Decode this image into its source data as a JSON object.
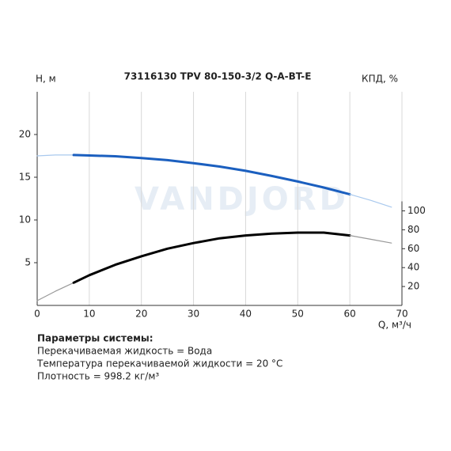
{
  "chart_data": {
    "type": "line",
    "title": "73116130 TPV 80-150-3/2 Q-A-BT-E",
    "watermark": "VANDJORD",
    "ylabel": "H, м",
    "y2label": "КПД, %",
    "xlabel": "Q, м³/ч",
    "xlim": [
      0,
      70
    ],
    "xticks": [
      0,
      10,
      20,
      30,
      40,
      50,
      60,
      70
    ],
    "ylim": [
      0,
      25
    ],
    "yticks": [
      5,
      10,
      15,
      20
    ],
    "y2lim": [
      0,
      226
    ],
    "y2ticks": [
      20,
      40,
      60,
      80,
      100
    ],
    "grid": "x",
    "series": [
      {
        "color": "#a9c9ee",
        "axis": "y",
        "x": [
          0,
          3.5,
          7
        ],
        "values": [
          17.5,
          17.6,
          17.6
        ]
      },
      {
        "color": "#1b5fbf",
        "axis": "y",
        "x": [
          7,
          10,
          15,
          20,
          25,
          30,
          35,
          40,
          45,
          50,
          55,
          60
        ],
        "values": [
          17.6,
          17.55,
          17.45,
          17.25,
          17,
          16.65,
          16.25,
          15.75,
          15.15,
          14.5,
          13.8,
          13.0
        ]
      },
      {
        "color": "#a9c9ee",
        "axis": "y",
        "x": [
          60,
          64,
          68
        ],
        "values": [
          13.0,
          12.3,
          11.5
        ]
      },
      {
        "color": "#999999",
        "axis": "y2",
        "x": [
          0,
          3.5,
          7
        ],
        "values": [
          5,
          15,
          24
        ]
      },
      {
        "color": "#000000",
        "axis": "y2",
        "x": [
          7,
          10,
          15,
          20,
          25,
          30,
          35,
          40,
          45,
          50,
          55,
          60
        ],
        "values": [
          24,
          32,
          43,
          52,
          60,
          66,
          71,
          74,
          76,
          77,
          77,
          74
        ]
      },
      {
        "color": "#999999",
        "axis": "y2",
        "x": [
          60,
          64,
          68
        ],
        "values": [
          74,
          70,
          66
        ]
      }
    ]
  },
  "notes": {
    "heading": "Параметры системы:",
    "lines": [
      "Перекачиваемая жидкость = Вода",
      "Температура перекачиваемой жидкости = 20 °C",
      "Плотность = 998.2 кг/м³"
    ]
  }
}
